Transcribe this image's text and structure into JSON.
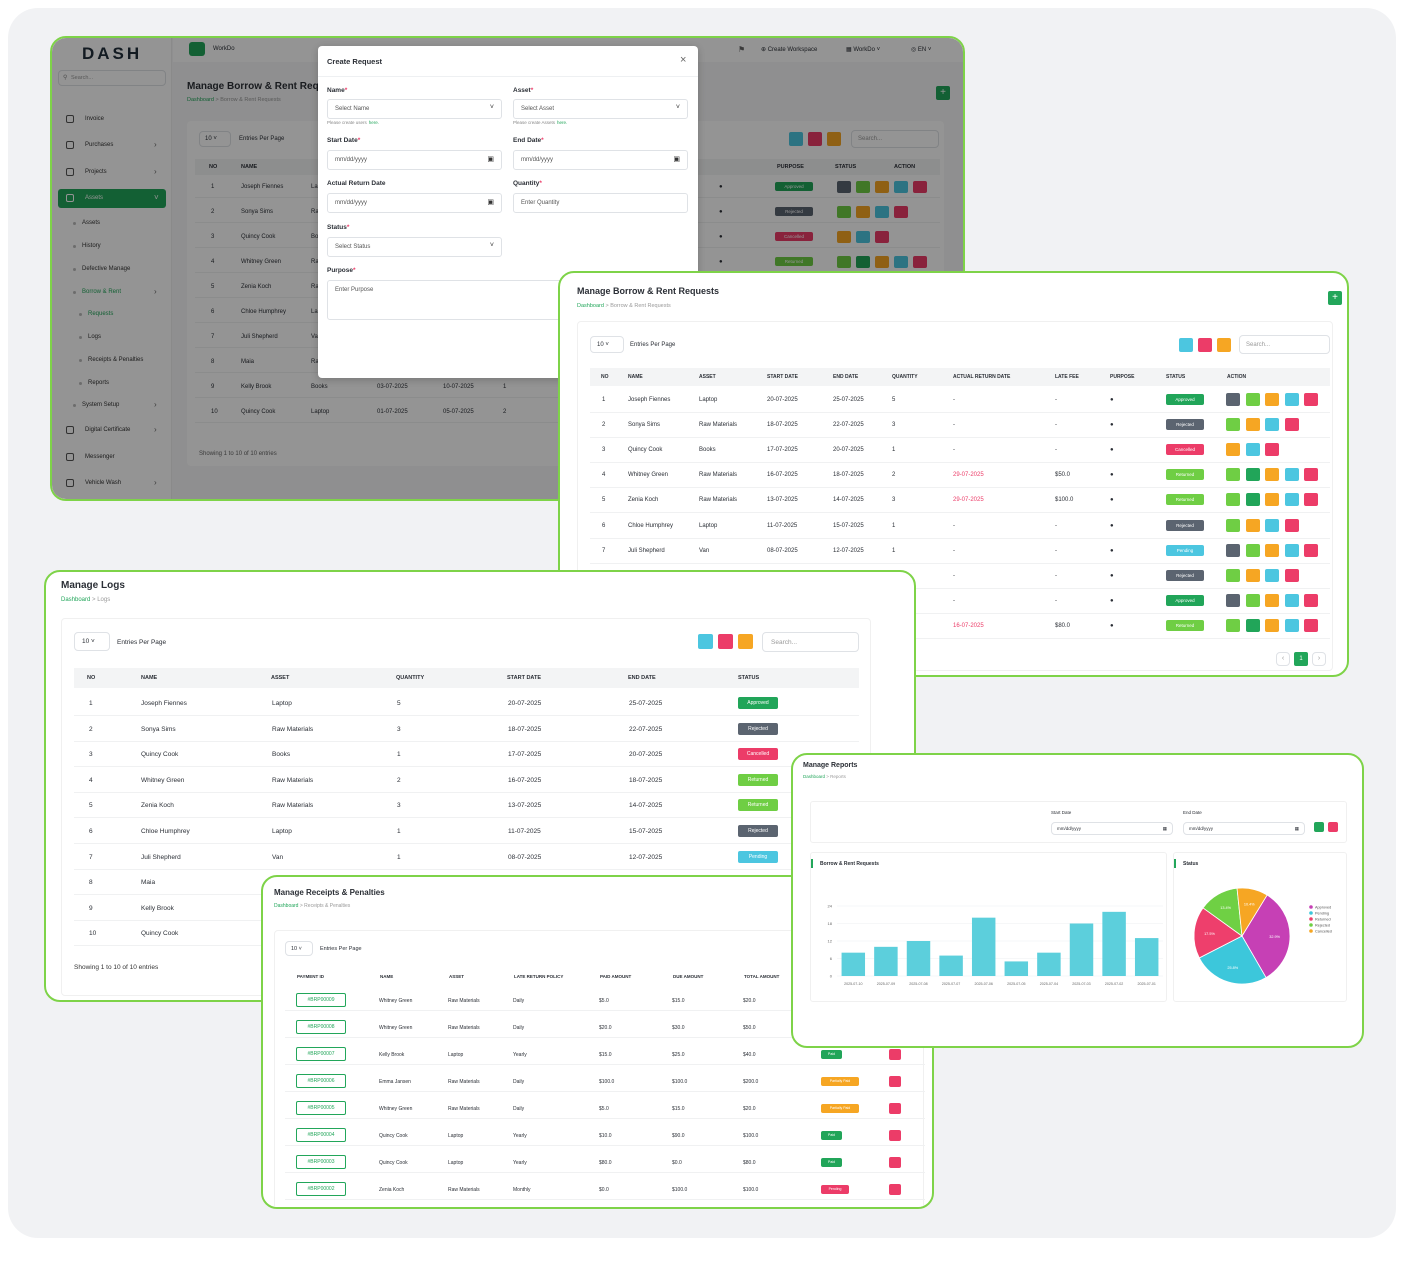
{
  "colors": {
    "approved": "#21a559",
    "rejected": "#5b6470",
    "cancelled": "#ec3c68",
    "returned": "#6fce44",
    "pending": "#4cc6e0",
    "paid": "#21a559",
    "partially_paid": "#f6a623",
    "pending_pay": "#ec3c68",
    "accent": "#1fa557",
    "border": "#7ed348"
  },
  "main": {
    "logo": "DASH",
    "search_placeholder": "Search...",
    "workspace_left": "WorkDo",
    "notif_count": "1",
    "create_workspace": "Create Workspace",
    "workspace_right": "WorkDo",
    "lang": "EN",
    "page_title": "Manage Borrow & Rent Requ",
    "breadcrumb": [
      "Dashboard",
      "Borrow & Rent Requests"
    ],
    "sidebar": [
      {
        "label": "Invoice",
        "icon": "invoice-icon",
        "level": 0
      },
      {
        "label": "Purchases",
        "icon": "cart-icon",
        "level": 0,
        "arrow": true
      },
      {
        "label": "Projects",
        "icon": "project-icon",
        "level": 0,
        "arrow": true
      },
      {
        "label": "Assets",
        "icon": "asset-icon",
        "level": 0,
        "active": true,
        "arrow": true
      },
      {
        "label": "Assets",
        "level": 1
      },
      {
        "label": "History",
        "level": 1
      },
      {
        "label": "Defective Manage",
        "level": 1
      },
      {
        "label": "Borrow & Rent",
        "level": 1,
        "green": true,
        "arrow": true
      },
      {
        "label": "Requests",
        "level": 2,
        "green": true
      },
      {
        "label": "Logs",
        "level": 2
      },
      {
        "label": "Receipts & Penalties",
        "level": 2
      },
      {
        "label": "Reports",
        "level": 2
      },
      {
        "label": "System Setup",
        "level": 1,
        "arrow": true
      },
      {
        "label": "Digital Certificate",
        "icon": "certificate-icon",
        "level": 0,
        "arrow": true
      },
      {
        "label": "Messenger",
        "icon": "chat-icon",
        "level": 0
      },
      {
        "label": "Vehicle Wash",
        "icon": "car-icon",
        "level": 0,
        "arrow": true
      }
    ],
    "per_page": "10",
    "entries_label": "Entries Per Page",
    "search": "Search...",
    "cols": [
      "NO",
      "NAME",
      "ASSET",
      "PURPOSE",
      "STATUS",
      "ACTION"
    ],
    "rows": [
      {
        "no": "1",
        "name": "Joseph Fiennes",
        "asset": "Lap"
      },
      {
        "no": "2",
        "name": "Sonya Sims",
        "asset": "Ra"
      },
      {
        "no": "3",
        "name": "Quincy Cook",
        "asset": "Bo"
      },
      {
        "no": "4",
        "name": "Whitney Green",
        "asset": "Ra"
      },
      {
        "no": "5",
        "name": "Zenia Koch",
        "asset": "Ra"
      },
      {
        "no": "6",
        "name": "Chloe Humphrey",
        "asset": "Lap"
      },
      {
        "no": "7",
        "name": "Juli Shepherd",
        "asset": "Va"
      },
      {
        "no": "8",
        "name": "Maia",
        "asset": "Ra"
      },
      {
        "no": "9",
        "name": "Kelly Brook",
        "asset": "Books",
        "start": "03-07-2025",
        "end": "10-07-2025",
        "qty": "1"
      },
      {
        "no": "10",
        "name": "Quincy Cook",
        "asset": "Laptop",
        "start": "01-07-2025",
        "end": "05-07-2025",
        "qty": "2"
      }
    ],
    "status_peek": [
      "Approved",
      "Rejected",
      "Cancelled",
      "Returned"
    ],
    "showing": "Showing 1 to 10 of 10 entries"
  },
  "modal": {
    "title": "Create Request",
    "name_label": "Name",
    "name_placeholder": "Select Name",
    "name_help": "Please create users",
    "here": "here.",
    "asset_label": "Asset",
    "asset_placeholder": "Select Asset",
    "asset_help": "Please create Assets",
    "start_label": "Start Date",
    "date_placeholder": "mm/dd/yyyy",
    "end_label": "End Date",
    "actual_label": "Actual Return Date",
    "qty_label": "Quantity",
    "qty_placeholder": "Enter Quantity",
    "status_label": "Status",
    "status_placeholder": "Select Status",
    "purpose_label": "Purpose",
    "purpose_placeholder": "Enter Purpose",
    "required": "*"
  },
  "requests": {
    "title": "Manage Borrow & Rent Requests",
    "breadcrumb": [
      "Dashboard",
      "Borrow & Rent Requests"
    ],
    "per_page": "10",
    "entries_label": "Entries Per Page",
    "search": "Search...",
    "cols": [
      "NO",
      "NAME",
      "ASSET",
      "START DATE",
      "END DATE",
      "QUANTITY",
      "ACTUAL RETURN DATE",
      "LATE FEE",
      "PURPOSE",
      "STATUS",
      "ACTION"
    ],
    "rows": [
      {
        "no": "1",
        "name": "Joseph Fiennes",
        "asset": "Laptop",
        "start": "20-07-2025",
        "end": "25-07-2025",
        "qty": "5",
        "ret": "-",
        "fee": "-",
        "status": "Approved",
        "s": "approved"
      },
      {
        "no": "2",
        "name": "Sonya Sims",
        "asset": "Raw Materials",
        "start": "18-07-2025",
        "end": "22-07-2025",
        "qty": "3",
        "ret": "-",
        "fee": "-",
        "status": "Rejected",
        "s": "rejected"
      },
      {
        "no": "3",
        "name": "Quincy Cook",
        "asset": "Books",
        "start": "17-07-2025",
        "end": "20-07-2025",
        "qty": "1",
        "ret": "-",
        "fee": "-",
        "status": "Cancelled",
        "s": "cancelled"
      },
      {
        "no": "4",
        "name": "Whitney Green",
        "asset": "Raw Materials",
        "start": "16-07-2025",
        "end": "18-07-2025",
        "qty": "2",
        "ret": "29-07-2025",
        "fee": "$50.0",
        "status": "Returned",
        "s": "returned"
      },
      {
        "no": "5",
        "name": "Zenia Koch",
        "asset": "Raw Materials",
        "start": "13-07-2025",
        "end": "14-07-2025",
        "qty": "3",
        "ret": "29-07-2025",
        "fee": "$100.0",
        "status": "Returned",
        "s": "returned"
      },
      {
        "no": "6",
        "name": "Chloe Humphrey",
        "asset": "Laptop",
        "start": "11-07-2025",
        "end": "15-07-2025",
        "qty": "1",
        "ret": "-",
        "fee": "-",
        "status": "Rejected",
        "s": "rejected"
      },
      {
        "no": "7",
        "name": "Juli Shepherd",
        "asset": "Van",
        "start": "08-07-2025",
        "end": "12-07-2025",
        "qty": "1",
        "ret": "-",
        "fee": "-",
        "status": "Pending",
        "s": "pending"
      },
      {
        "no": "",
        "name": "",
        "asset": "",
        "start": "",
        "end": "",
        "qty": "3",
        "ret": "-",
        "fee": "-",
        "status": "Rejected",
        "s": "rejected"
      },
      {
        "no": "",
        "name": "",
        "asset": "",
        "start": "",
        "end": "",
        "qty": "1",
        "ret": "-",
        "fee": "-",
        "status": "Approved",
        "s": "approved"
      },
      {
        "no": "",
        "name": "",
        "asset": "",
        "start": "",
        "end": "",
        "qty": "2",
        "ret": "16-07-2025",
        "fee": "$80.0",
        "status": "Returned",
        "s": "returned"
      }
    ],
    "page": "1"
  },
  "logs": {
    "title": "Manage Logs",
    "breadcrumb": [
      "Dashboard",
      "Logs"
    ],
    "per_page": "10",
    "entries_label": "Entries Per Page",
    "search": "Search...",
    "cols": [
      "NO",
      "NAME",
      "ASSET",
      "QUANTITY",
      "START DATE",
      "END DATE",
      "STATUS"
    ],
    "rows": [
      {
        "no": "1",
        "name": "Joseph Fiennes",
        "asset": "Laptop",
        "qty": "5",
        "start": "20-07-2025",
        "end": "25-07-2025",
        "status": "Approved",
        "s": "approved"
      },
      {
        "no": "2",
        "name": "Sonya Sims",
        "asset": "Raw Materials",
        "qty": "3",
        "start": "18-07-2025",
        "end": "22-07-2025",
        "status": "Rejected",
        "s": "rejected"
      },
      {
        "no": "3",
        "name": "Quincy Cook",
        "asset": "Books",
        "qty": "1",
        "start": "17-07-2025",
        "end": "20-07-2025",
        "status": "Cancelled",
        "s": "cancelled"
      },
      {
        "no": "4",
        "name": "Whitney Green",
        "asset": "Raw Materials",
        "qty": "2",
        "start": "16-07-2025",
        "end": "18-07-2025",
        "status": "Returned",
        "s": "returned"
      },
      {
        "no": "5",
        "name": "Zenia Koch",
        "asset": "Raw Materials",
        "qty": "3",
        "start": "13-07-2025",
        "end": "14-07-2025",
        "status": "Returned",
        "s": "returned"
      },
      {
        "no": "6",
        "name": "Chloe Humphrey",
        "asset": "Laptop",
        "qty": "1",
        "start": "11-07-2025",
        "end": "15-07-2025",
        "status": "Rejected",
        "s": "rejected"
      },
      {
        "no": "7",
        "name": "Juli Shepherd",
        "asset": "Van",
        "qty": "1",
        "start": "08-07-2025",
        "end": "12-07-2025",
        "status": "Pending",
        "s": "pending"
      },
      {
        "no": "8",
        "name": "Maia"
      },
      {
        "no": "9",
        "name": "Kelly Brook"
      },
      {
        "no": "10",
        "name": "Quincy Cook"
      }
    ],
    "showing": "Showing 1 to 10 of 10 entries"
  },
  "receipts": {
    "title": "Manage Receipts & Penalties",
    "breadcrumb": [
      "Dashboard",
      "Receipts & Penalties"
    ],
    "per_page": "10",
    "entries_label": "Entries Per Page",
    "cols": [
      "PAYMENT ID",
      "NAME",
      "ASSET",
      "LATE RETURN POLICY",
      "PAID AMOUNT",
      "DUE AMOUNT",
      "TOTAL AMOUNT"
    ],
    "rows": [
      {
        "id": "#BRP00009",
        "name": "Whitney Green",
        "asset": "Raw Materials",
        "policy": "Daily",
        "paid": "$5.0",
        "due": "$15.0",
        "total": "$20.0"
      },
      {
        "id": "#BRP00008",
        "name": "Whitney Green",
        "asset": "Raw Materials",
        "policy": "Daily",
        "paid": "$20.0",
        "due": "$30.0",
        "total": "$50.0"
      },
      {
        "id": "#BRP00007",
        "name": "Kelly Brook",
        "asset": "Laptop",
        "policy": "Yearly",
        "paid": "$15.0",
        "due": "$25.0",
        "total": "$40.0",
        "status": "Paid",
        "s": "paid"
      },
      {
        "id": "#BRP00006",
        "name": "Emma Jansen",
        "asset": "Raw Materials",
        "policy": "Daily",
        "paid": "$100.0",
        "due": "$100.0",
        "total": "$200.0",
        "status": "Partially Paid",
        "s": "partially_paid"
      },
      {
        "id": "#BRP00005",
        "name": "Whitney Green",
        "asset": "Raw Materials",
        "policy": "Daily",
        "paid": "$5.0",
        "due": "$15.0",
        "total": "$20.0",
        "status": "Partially Paid",
        "s": "partially_paid"
      },
      {
        "id": "#BRP00004",
        "name": "Quincy Cook",
        "asset": "Laptop",
        "policy": "Yearly",
        "paid": "$10.0",
        "due": "$90.0",
        "total": "$100.0",
        "status": "Paid",
        "s": "paid"
      },
      {
        "id": "#BRP00003",
        "name": "Quincy Cook",
        "asset": "Laptop",
        "policy": "Yearly",
        "paid": "$80.0",
        "due": "$0.0",
        "total": "$80.0",
        "status": "Paid",
        "s": "paid"
      },
      {
        "id": "#BRP00002",
        "name": "Zenia Koch",
        "asset": "Raw Materials",
        "policy": "Monthly",
        "paid": "$0.0",
        "due": "$100.0",
        "total": "$100.0",
        "status": "Pending",
        "s": "pending_pay"
      }
    ]
  },
  "reports": {
    "title": "Manage Reports",
    "breadcrumb": [
      "Dashboard",
      "Reports"
    ],
    "start_label": "Start Date",
    "end_label": "End Date",
    "date_placeholder": "mm/dd/yyyy",
    "bar_title": "Borrow & Rent Requests",
    "pie_title": "Status"
  },
  "chart_data": [
    {
      "type": "bar",
      "title": "Borrow & Rent Requests",
      "categories": [
        "2025-07-10",
        "2025-07-09",
        "2025-07-08",
        "2025-07-07",
        "2025-07-06",
        "2025-07-05",
        "2025-07-04",
        "2025-07-03",
        "2025-07-02",
        "2025-07-01"
      ],
      "values": [
        8,
        10,
        12,
        7,
        20,
        5,
        8,
        18,
        22,
        13
      ],
      "yticks": [
        "0",
        "6",
        "12",
        "18",
        "24"
      ],
      "ylim": [
        0,
        24
      ],
      "color": "#5ccfdc"
    },
    {
      "type": "pie",
      "title": "Status",
      "labels": [
        "Approved",
        "Pending",
        "Returned",
        "Rejected",
        "Cancelled"
      ],
      "values": [
        32.9,
        25.8,
        17.5,
        13.4,
        10.4
      ],
      "slice_labels": [
        "32.9%",
        "25.8%",
        "17.5%",
        "13.4%",
        "10.4%"
      ],
      "colors": [
        "#c640b5",
        "#3cc7db",
        "#ee3f6c",
        "#6fd044",
        "#f6a623"
      ]
    }
  ]
}
